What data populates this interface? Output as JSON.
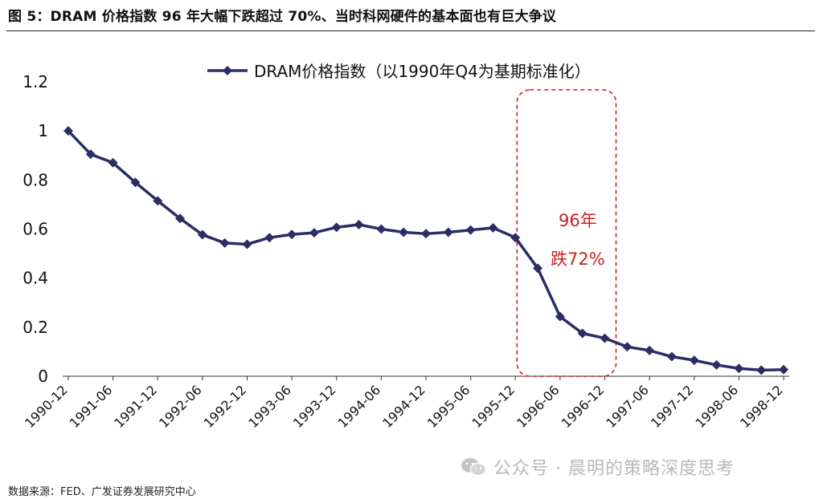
{
  "figure": {
    "title": "图 5：DRAM 价格指数 96 年大幅下跌超过 70%、当时科网硬件的基本面也有巨大争议",
    "source": "数据来源：FED、广发证券发展研究中心",
    "watermark": "公众号 · 晨明的策略深度思考",
    "watermark_icon": "wechat-icon"
  },
  "colors": {
    "series": "#2b2d63",
    "annotation": "#cc1f1f",
    "axis": "#333333"
  },
  "chart_data": {
    "type": "line",
    "title": "",
    "xlabel": "",
    "ylabel": "",
    "ylim": [
      0,
      1.2
    ],
    "yticks": [
      "0",
      "0.2",
      "0.4",
      "0.6",
      "0.8",
      "1",
      "1.2"
    ],
    "grid": false,
    "legend_position": "top",
    "x_tick_labels": [
      "1990-12",
      "1991-06",
      "1991-12",
      "1992-06",
      "1992-12",
      "1993-06",
      "1993-12",
      "1994-06",
      "1994-12",
      "1995-06",
      "1995-12",
      "1996-06",
      "1996-12",
      "1997-06",
      "1997-12",
      "1998-06",
      "1998-12"
    ],
    "x": [
      "1990-12",
      "1991-03",
      "1991-06",
      "1991-09",
      "1991-12",
      "1992-03",
      "1992-06",
      "1992-09",
      "1992-12",
      "1993-03",
      "1993-06",
      "1993-09",
      "1993-12",
      "1994-03",
      "1994-06",
      "1994-09",
      "1994-12",
      "1995-03",
      "1995-06",
      "1995-09",
      "1995-12",
      "1996-03",
      "1996-06",
      "1996-09",
      "1996-12",
      "1997-03",
      "1997-06",
      "1997-09",
      "1997-12",
      "1998-03",
      "1998-06",
      "1998-09",
      "1998-12"
    ],
    "series": [
      {
        "name": "DRAM价格指数（以1990年Q4为基期标准化）",
        "values": [
          1.0,
          0.905,
          0.87,
          0.79,
          0.715,
          0.643,
          0.577,
          0.543,
          0.538,
          0.565,
          0.578,
          0.585,
          0.607,
          0.618,
          0.6,
          0.587,
          0.581,
          0.587,
          0.596,
          0.605,
          0.565,
          0.44,
          0.243,
          0.175,
          0.155,
          0.12,
          0.105,
          0.08,
          0.065,
          0.046,
          0.032,
          0.025,
          0.027
        ]
      }
    ],
    "annotations": [
      {
        "line1": "96年",
        "line2": "跌72%",
        "from": "1995-12",
        "to": "1996-12"
      }
    ]
  }
}
